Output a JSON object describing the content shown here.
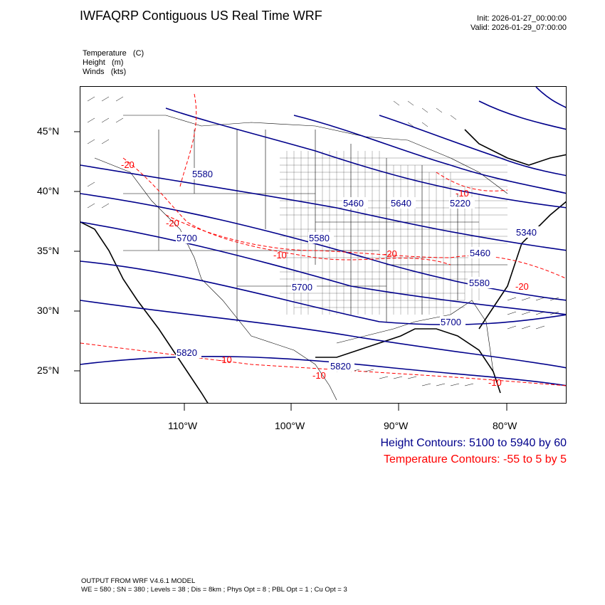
{
  "header": {
    "title": "IWFAQRP Contiguous US Real Time WRF",
    "init_label": "Init: 2026-01-27_00:00:00",
    "valid_label": "Valid: 2026-01-29_07:00:00"
  },
  "fields": [
    "Temperature   (C)",
    "Height   (m)",
    "Winds   (kts)"
  ],
  "map": {
    "lat_labels": [
      "45°N",
      "40°N",
      "35°N",
      "30°N",
      "25°N"
    ],
    "lon_labels": [
      "110°W",
      "100°W",
      "90°W",
      "80°W"
    ],
    "height_contour_labels": [
      "5580",
      "5460",
      "5640",
      "5220",
      "5340",
      "5700",
      "5580",
      "5460",
      "5580",
      "5700",
      "5700",
      "5820",
      "5820"
    ],
    "temperature_contour_labels": [
      "-20",
      "-20",
      "-10",
      "-20",
      "-10",
      "-20",
      "-10",
      "-10",
      "-10"
    ],
    "height_color": "#00008b",
    "temperature_color": "#ff0000"
  },
  "legend": {
    "height": "Height Contours: 5100 to 5940 by 60",
    "temperature": "Temperature Contours: -55 to 5 by 5"
  },
  "footer": {
    "line1": "OUTPUT FROM WRF V4.6.1 MODEL",
    "line2": "WE = 580 ; SN = 380 ; Levels = 38 ; Dis = 8km ; Phys Opt = 8 ; PBL Opt = 1 ; Cu Opt = 3"
  }
}
